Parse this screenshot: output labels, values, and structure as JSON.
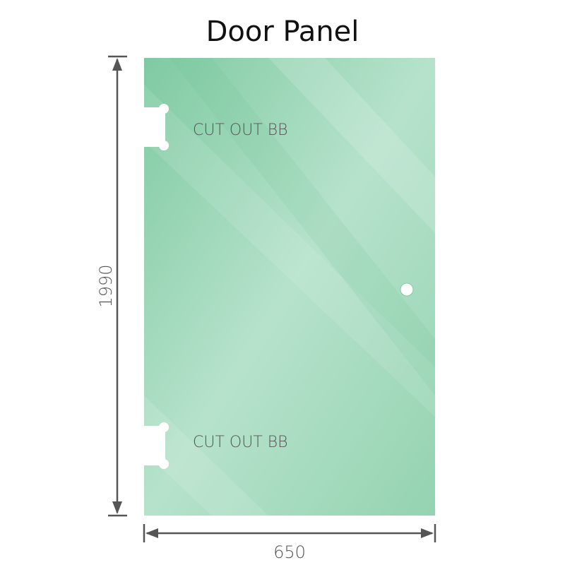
{
  "title": "Door Panel",
  "panel": {
    "color": "#86cfa8",
    "cutouts": [
      "CUT OUT BB",
      "CUT OUT BB"
    ]
  },
  "dimensions": {
    "height": "1990",
    "width": "650"
  }
}
